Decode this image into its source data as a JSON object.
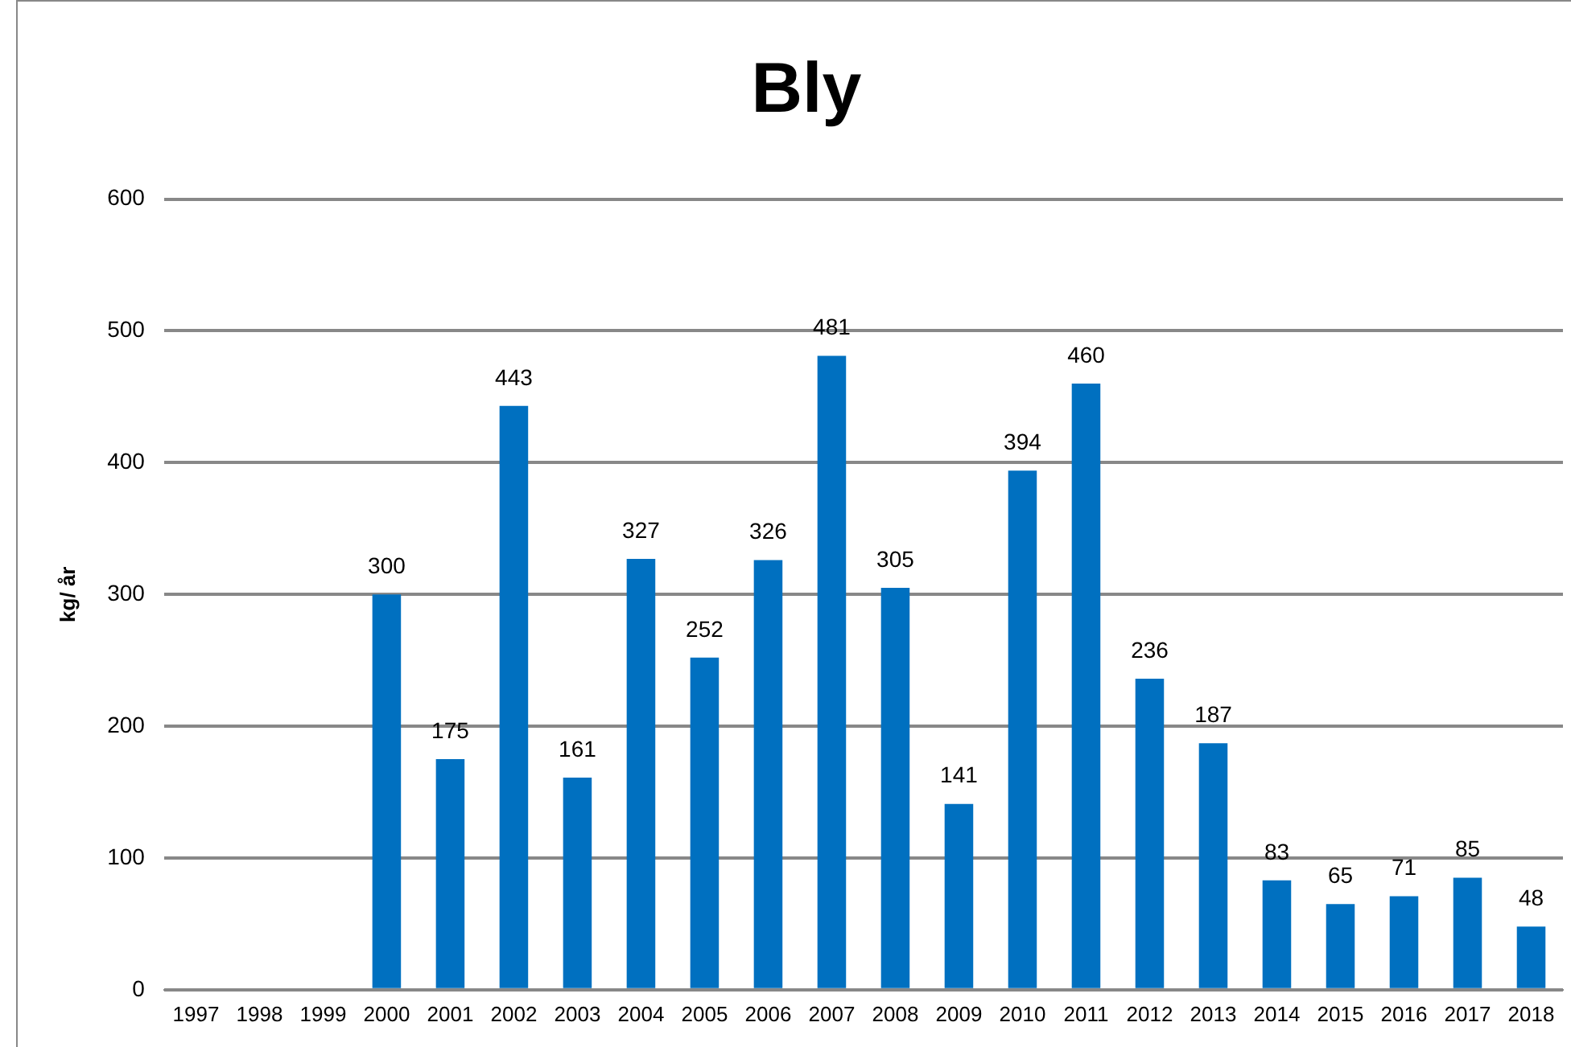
{
  "chart_data": {
    "type": "bar",
    "title": "Bly",
    "ylabel": "kg/ år",
    "categories": [
      "1997",
      "1998",
      "1999",
      "2000",
      "2001",
      "2002",
      "2003",
      "2004",
      "2005",
      "2006",
      "2007",
      "2008",
      "2009",
      "2010",
      "2011",
      "2012",
      "2013",
      "2014",
      "2015",
      "2016",
      "2017",
      "2018"
    ],
    "values": [
      null,
      null,
      null,
      300,
      175,
      443,
      161,
      327,
      252,
      326,
      481,
      305,
      141,
      394,
      460,
      236,
      187,
      83,
      65,
      71,
      85,
      48
    ],
    "color": "#0070c0",
    "ylim": [
      0,
      600
    ],
    "yticks": [
      0,
      100,
      200,
      300,
      400,
      500,
      600
    ],
    "grid": "y",
    "data_labels": true,
    "legend": false
  }
}
